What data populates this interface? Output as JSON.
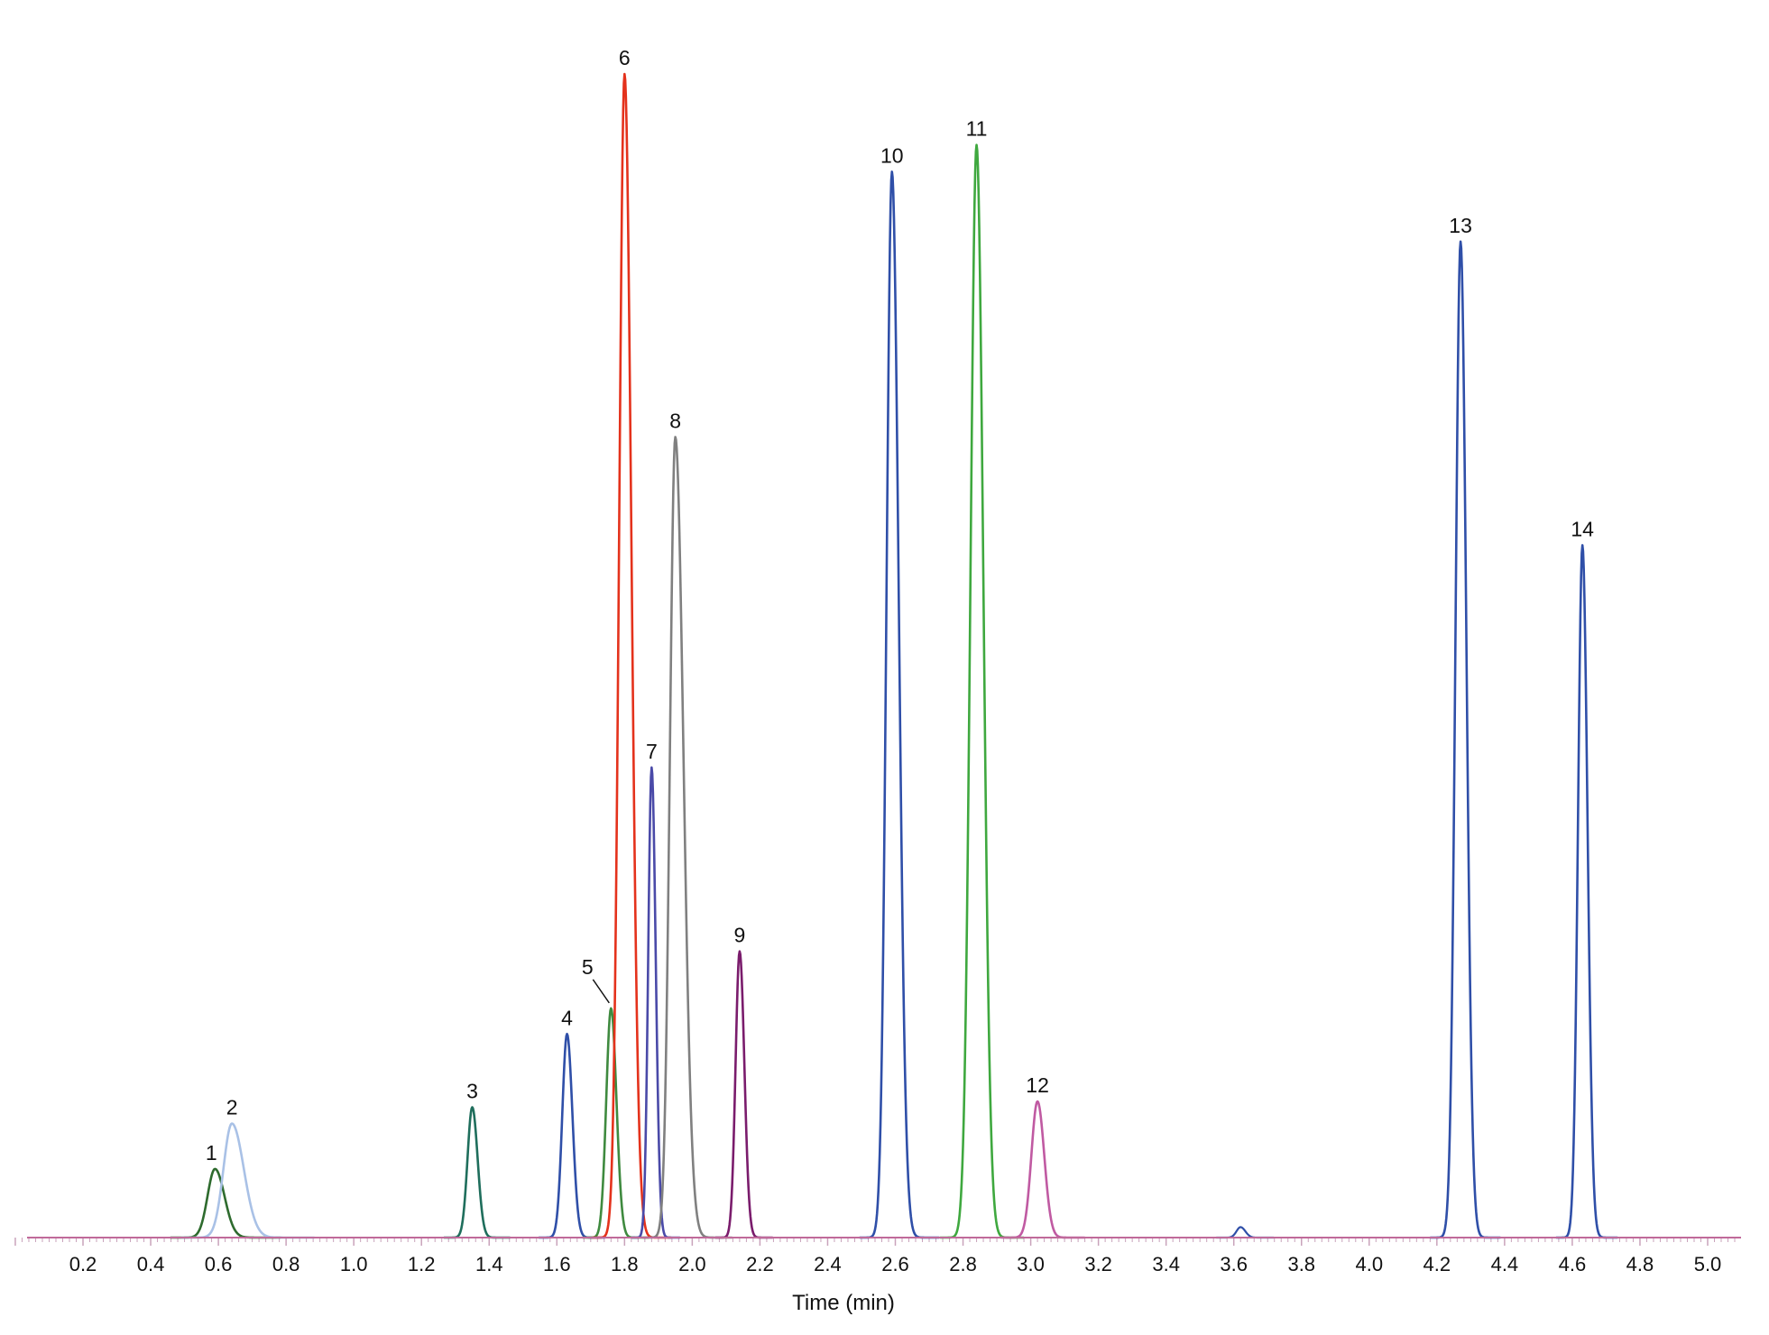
{
  "chart_data": {
    "type": "line",
    "title": "",
    "xlabel": "Time (min)",
    "ylabel": "",
    "xlim": [
      0.0,
      5.08
    ],
    "ylim": [
      0,
      100
    ],
    "grid": false,
    "legend": "none",
    "x_ticks": [
      "0.2",
      "0.4",
      "0.6",
      "0.8",
      "1.0",
      "1.2",
      "1.4",
      "1.6",
      "1.8",
      "2.0",
      "2.2",
      "2.4",
      "2.6",
      "2.8",
      "3.0",
      "3.2",
      "3.4",
      "3.6",
      "3.8",
      "4.0",
      "4.2",
      "4.4",
      "4.6",
      "4.8",
      "5.0"
    ],
    "baseline_color": "#c06a9a",
    "peaks": [
      {
        "label": "1",
        "rt": 0.59,
        "height": 5.9,
        "width": 0.022,
        "tail": 0.028,
        "color": "#2e6b2e"
      },
      {
        "label": "2",
        "rt": 0.64,
        "height": 9.8,
        "width": 0.025,
        "tail": 0.035,
        "color": "#a9c1e6"
      },
      {
        "label": "3",
        "rt": 1.35,
        "height": 11.2,
        "width": 0.014,
        "tail": 0.016,
        "color": "#1f6e5c"
      },
      {
        "label": "4",
        "rt": 1.63,
        "height": 17.5,
        "width": 0.014,
        "tail": 0.016,
        "color": "#2f4fa8"
      },
      {
        "label": "5",
        "rt": 1.76,
        "height": 19.7,
        "width": 0.014,
        "tail": 0.016,
        "color": "#3f8a3f",
        "leader": true
      },
      {
        "label": "6",
        "rt": 1.8,
        "height": 100,
        "width": 0.016,
        "tail": 0.02,
        "color": "#e4321c"
      },
      {
        "label": "7",
        "rt": 1.88,
        "height": 40.4,
        "width": 0.01,
        "tail": 0.012,
        "color": "#4a4aa8"
      },
      {
        "label": "8",
        "rt": 1.95,
        "height": 68.8,
        "width": 0.016,
        "tail": 0.024,
        "color": "#808080"
      },
      {
        "label": "9",
        "rt": 2.14,
        "height": 24.6,
        "width": 0.012,
        "tail": 0.014,
        "color": "#7a1c6c"
      },
      {
        "label": "10",
        "rt": 2.59,
        "height": 91.6,
        "width": 0.016,
        "tail": 0.02,
        "color": "#2f4fa8"
      },
      {
        "label": "11",
        "rt": 2.84,
        "height": 93.9,
        "width": 0.018,
        "tail": 0.02,
        "color": "#3fa83f"
      },
      {
        "label": "12",
        "rt": 3.02,
        "height": 11.7,
        "width": 0.018,
        "tail": 0.02,
        "color": "#c05aa2"
      },
      {
        "label": "13",
        "rt": 4.27,
        "height": 85.6,
        "width": 0.015,
        "tail": 0.017,
        "color": "#2f4fa8"
      },
      {
        "label": "14",
        "rt": 4.63,
        "height": 59.5,
        "width": 0.013,
        "tail": 0.015,
        "color": "#2f4fa8"
      }
    ],
    "minor_peaks": [
      {
        "rt": 3.62,
        "height": 0.9,
        "width": 0.012,
        "tail": 0.014,
        "color": "#2f4fa8"
      }
    ]
  }
}
